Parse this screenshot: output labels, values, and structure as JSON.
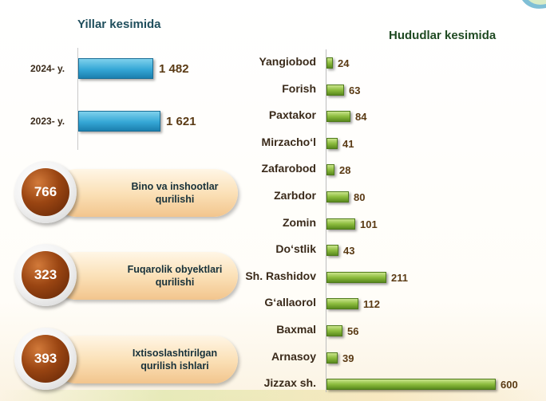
{
  "corner_icon": "wave-icon",
  "chart_data": [
    {
      "type": "bar",
      "title": "Yillar kesimida",
      "orientation": "horizontal",
      "categories": [
        "2024- y.",
        "2023- y."
      ],
      "values": [
        1482,
        1621
      ],
      "value_labels": [
        "1 482",
        "1 621"
      ],
      "xlim": [
        0,
        1621
      ],
      "color": "#35a7d6"
    },
    {
      "type": "bar",
      "title": "Hududlar kesimida",
      "orientation": "horizontal",
      "categories": [
        "Yangiobod",
        "Forish",
        "Paxtakor",
        "Mirzacho‘l",
        "Zafarobod",
        "Zarbdor",
        "Zomin",
        "Do‘stlik",
        "Sh. Rashidov",
        "G‘allaorol",
        "Baxmal",
        "Arnasoy",
        "Jizzax  sh."
      ],
      "values": [
        24,
        63,
        84,
        41,
        28,
        80,
        101,
        43,
        211,
        112,
        56,
        39,
        600
      ],
      "xlim": [
        0,
        600
      ],
      "color": "#8cbc3e"
    }
  ],
  "categories": [
    {
      "value": "766",
      "label": "Bino va inshootlar qurilishi",
      "ball_color": "#9a4512"
    },
    {
      "value": "323",
      "label": "Fuqarolik obyektlari qurilishi",
      "ball_color": "#9a4512"
    },
    {
      "value": "393",
      "label": "Ixtisoslashtirilgan qurilish ishlari",
      "ball_color": "#9a4512"
    }
  ]
}
